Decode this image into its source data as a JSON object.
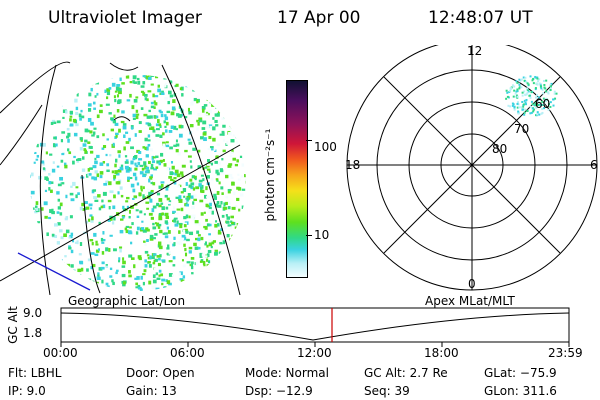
{
  "header": {
    "title": "Ultraviolet Imager",
    "date": "17 Apr 00",
    "time": "12:48:07 UT"
  },
  "colorbar": {
    "label": "photon cm⁻²s⁻¹",
    "ticks": [
      "100",
      "10"
    ],
    "colors": [
      "#111133",
      "#4b0e5e",
      "#8e1258",
      "#cf1638",
      "#f0581e",
      "#f7a51b",
      "#f5e01a",
      "#b8ec1a",
      "#5ee01e",
      "#30d987",
      "#39d2e0",
      "#b8f0f6",
      "#f4fdff"
    ]
  },
  "polar": {
    "labels_hour": {
      "top": "12",
      "left": "18",
      "right": "6",
      "bottom": "0"
    },
    "labels_lat": [
      "60",
      "70",
      "80"
    ]
  },
  "timeline": {
    "left_label": "Geographic Lat/Lon",
    "right_label": "Apex MLat/MLT",
    "axis_label": "GC Alt",
    "y_ticks": [
      "9.0",
      "1.8"
    ],
    "x_ticks": [
      "00:00",
      "06:00",
      "12:00",
      "18:00",
      "23:59"
    ],
    "marker_color": "#cc0000"
  },
  "info": {
    "flt": "Flt: LBHL",
    "ip": "IP: 9.0",
    "door": "Door: Open",
    "gain": "Gain: 13",
    "mode": "Mode: Normal",
    "dsp": "Dsp: −12.9",
    "gcalt": "GC Alt: 2.7 Re",
    "seq": "Seq: 39",
    "glat": "GLat: −75.9",
    "glon": "GLon: 311.6"
  }
}
